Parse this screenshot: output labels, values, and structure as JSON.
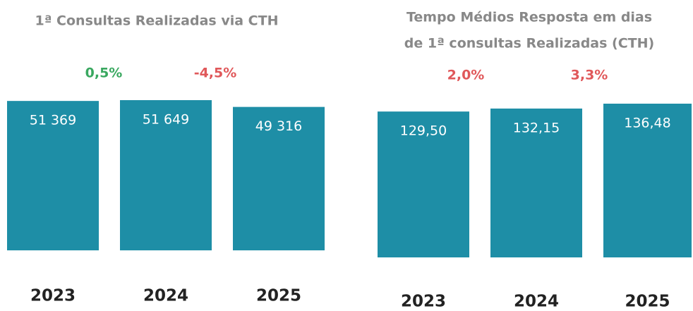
{
  "chart_data": [
    {
      "type": "bar",
      "title_lines": [
        "1ª Consultas Realizadas via CTH"
      ],
      "categories": [
        "2023",
        "2024",
        "2025"
      ],
      "values": [
        51369,
        51649,
        49316
      ],
      "value_labels": [
        "51 369",
        "51 649",
        "49 316"
      ],
      "color": "#1e8ea6",
      "annotations": [
        {
          "text": "0,5%",
          "color": "#3aa860"
        },
        {
          "text": "-4,5%",
          "color": "#e0585a"
        }
      ]
    },
    {
      "type": "bar",
      "title_lines": [
        "Tempo Médios Resposta em dias",
        "de 1ª consultas Realizadas (CTH)"
      ],
      "categories": [
        "2023",
        "2024",
        "2025"
      ],
      "values": [
        129.5,
        132.15,
        136.48
      ],
      "value_labels": [
        "129,50",
        "132,15",
        "136,48"
      ],
      "color": "#1e8ea6",
      "annotations": [
        {
          "text": "2,0%",
          "color": "#e0585a"
        },
        {
          "text": "3,3%",
          "color": "#e0585a"
        }
      ]
    }
  ]
}
